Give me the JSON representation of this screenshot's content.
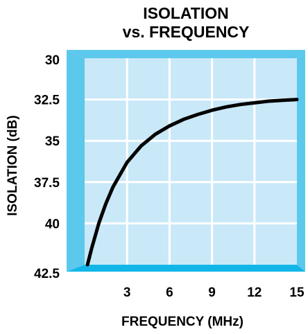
{
  "chart_data": {
    "type": "line",
    "title_lines": [
      "ISOLATION",
      "vs. FREQUENCY"
    ],
    "xlabel": "FREQUENCY (MHz)",
    "ylabel": "ISOLATION (dB)",
    "xlim": [
      0,
      15
    ],
    "ylim": [
      42.5,
      30
    ],
    "x_ticks": [
      "3",
      "6",
      "9",
      "12",
      "15"
    ],
    "y_ticks": [
      "30",
      "32.5",
      "35",
      "37.5",
      "40",
      "42.5"
    ],
    "grid": true,
    "series": [
      {
        "x": [
          0.2,
          0.5,
          1,
          1.5,
          2,
          3,
          4,
          5,
          6,
          7,
          8,
          9,
          10,
          11,
          12,
          13,
          14,
          15
        ],
        "y": [
          42.5,
          41.5,
          40.0,
          38.8,
          37.8,
          36.3,
          35.3,
          34.6,
          34.1,
          33.7,
          33.4,
          33.15,
          32.95,
          32.8,
          32.7,
          32.6,
          32.55,
          32.5
        ]
      }
    ],
    "colors": {
      "plot_fill": "#c9e8f8",
      "frame": "#5cc8ec",
      "frame_bottom": "#12b6e8",
      "grid": "#ffffff",
      "curve": "#000000"
    }
  }
}
